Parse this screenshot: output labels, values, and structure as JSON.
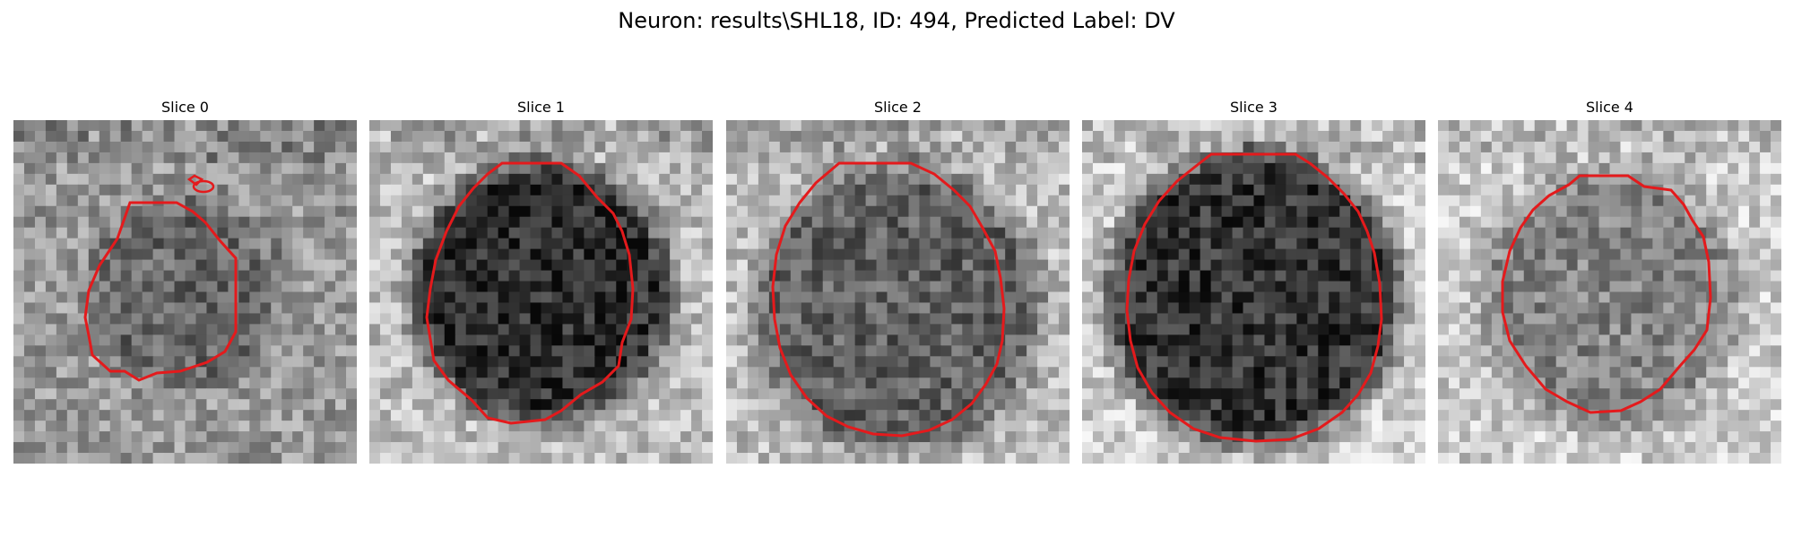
{
  "figure": {
    "title": "Neuron: results\\SHL18, ID: 494, Predicted Label: DV"
  },
  "panels": [
    {
      "title": "Slice 0",
      "contour_color": "#e41a1c"
    },
    {
      "title": "Slice 1",
      "contour_color": "#e41a1c"
    },
    {
      "title": "Slice 2",
      "contour_color": "#e41a1c"
    },
    {
      "title": "Slice 3",
      "contour_color": "#e41a1c"
    },
    {
      "title": "Slice 4",
      "contour_color": "#e41a1c"
    }
  ]
}
